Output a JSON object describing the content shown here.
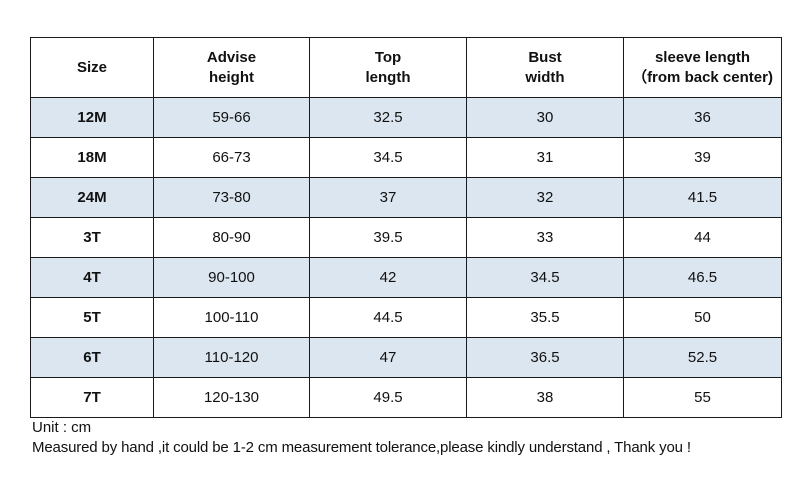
{
  "table": {
    "headers": [
      "Size",
      "Advise\nheight",
      "Top\nlength",
      "Bust\nwidth",
      "sleeve length\n（from back center)"
    ],
    "rows": [
      {
        "size": "12M",
        "height": "59-66",
        "top_length": "32.5",
        "bust_width": "30",
        "sleeve_length": "36"
      },
      {
        "size": "18M",
        "height": "66-73",
        "top_length": "34.5",
        "bust_width": "31",
        "sleeve_length": "39"
      },
      {
        "size": "24M",
        "height": "73-80",
        "top_length": "37",
        "bust_width": "32",
        "sleeve_length": "41.5"
      },
      {
        "size": "3T",
        "height": "80-90",
        "top_length": "39.5",
        "bust_width": "33",
        "sleeve_length": "44"
      },
      {
        "size": "4T",
        "height": "90-100",
        "top_length": "42",
        "bust_width": "34.5",
        "sleeve_length": "46.5"
      },
      {
        "size": "5T",
        "height": "100-110",
        "top_length": "44.5",
        "bust_width": "35.5",
        "sleeve_length": "50"
      },
      {
        "size": "6T",
        "height": "110-120",
        "top_length": "47",
        "bust_width": "36.5",
        "sleeve_length": "52.5"
      },
      {
        "size": "7T",
        "height": "120-130",
        "top_length": "49.5",
        "bust_width": "38",
        "sleeve_length": "55"
      }
    ]
  },
  "notes": {
    "unit": "Unit : cm",
    "measured": "Measured by hand ,it could be 1-2 cm measurement tolerance,please kindly understand , Thank you !"
  },
  "colors": {
    "shaded_row": "#dce6f1",
    "border": "#1a1a1a"
  }
}
